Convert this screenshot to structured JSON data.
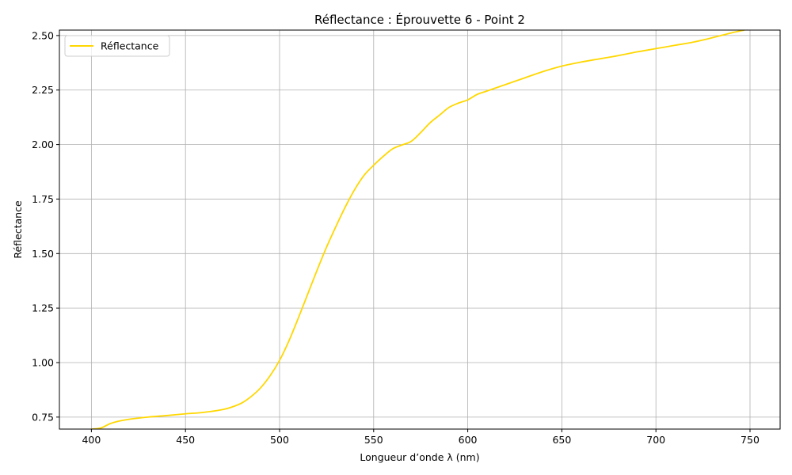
{
  "chart_data": {
    "type": "line",
    "title": "Réflectance : Éprouvette 6 - Point 2",
    "xlabel": "Longueur d’onde λ (nm)",
    "ylabel": "Réflectance",
    "xlim": [
      383,
      766
    ],
    "ylim": [
      0.695,
      2.525
    ],
    "xticks": [
      400,
      450,
      500,
      550,
      600,
      650,
      700,
      750
    ],
    "yticks": [
      0.75,
      1.0,
      1.25,
      1.5,
      1.75,
      2.0,
      2.25,
      2.5
    ],
    "ytick_labels": [
      "0.75",
      "1.00",
      "1.25",
      "1.50",
      "1.75",
      "2.00",
      "2.25",
      "2.50"
    ],
    "grid": true,
    "legend_position": "top-left",
    "colors": {
      "line": "#FFD700",
      "grid": "#b0b0b0"
    },
    "series": [
      {
        "name": "Réflectance",
        "x": [
          400,
          405,
          410,
          415,
          420,
          430,
          440,
          450,
          460,
          470,
          475,
          480,
          485,
          490,
          495,
          500,
          505,
          510,
          515,
          520,
          525,
          530,
          535,
          540,
          545,
          550,
          555,
          560,
          565,
          570,
          575,
          580,
          585,
          590,
          595,
          600,
          605,
          610,
          620,
          630,
          640,
          650,
          660,
          670,
          680,
          690,
          700,
          710,
          720,
          730,
          740,
          747
        ],
        "y": [
          0.695,
          0.7,
          0.72,
          0.732,
          0.74,
          0.75,
          0.757,
          0.765,
          0.772,
          0.785,
          0.797,
          0.815,
          0.845,
          0.885,
          0.94,
          1.01,
          1.1,
          1.205,
          1.315,
          1.425,
          1.53,
          1.625,
          1.715,
          1.795,
          1.86,
          1.905,
          1.945,
          1.98,
          1.998,
          2.015,
          2.055,
          2.1,
          2.135,
          2.17,
          2.19,
          2.205,
          2.23,
          2.245,
          2.275,
          2.305,
          2.335,
          2.36,
          2.378,
          2.393,
          2.408,
          2.425,
          2.44,
          2.455,
          2.47,
          2.49,
          2.512,
          2.525
        ]
      }
    ]
  }
}
